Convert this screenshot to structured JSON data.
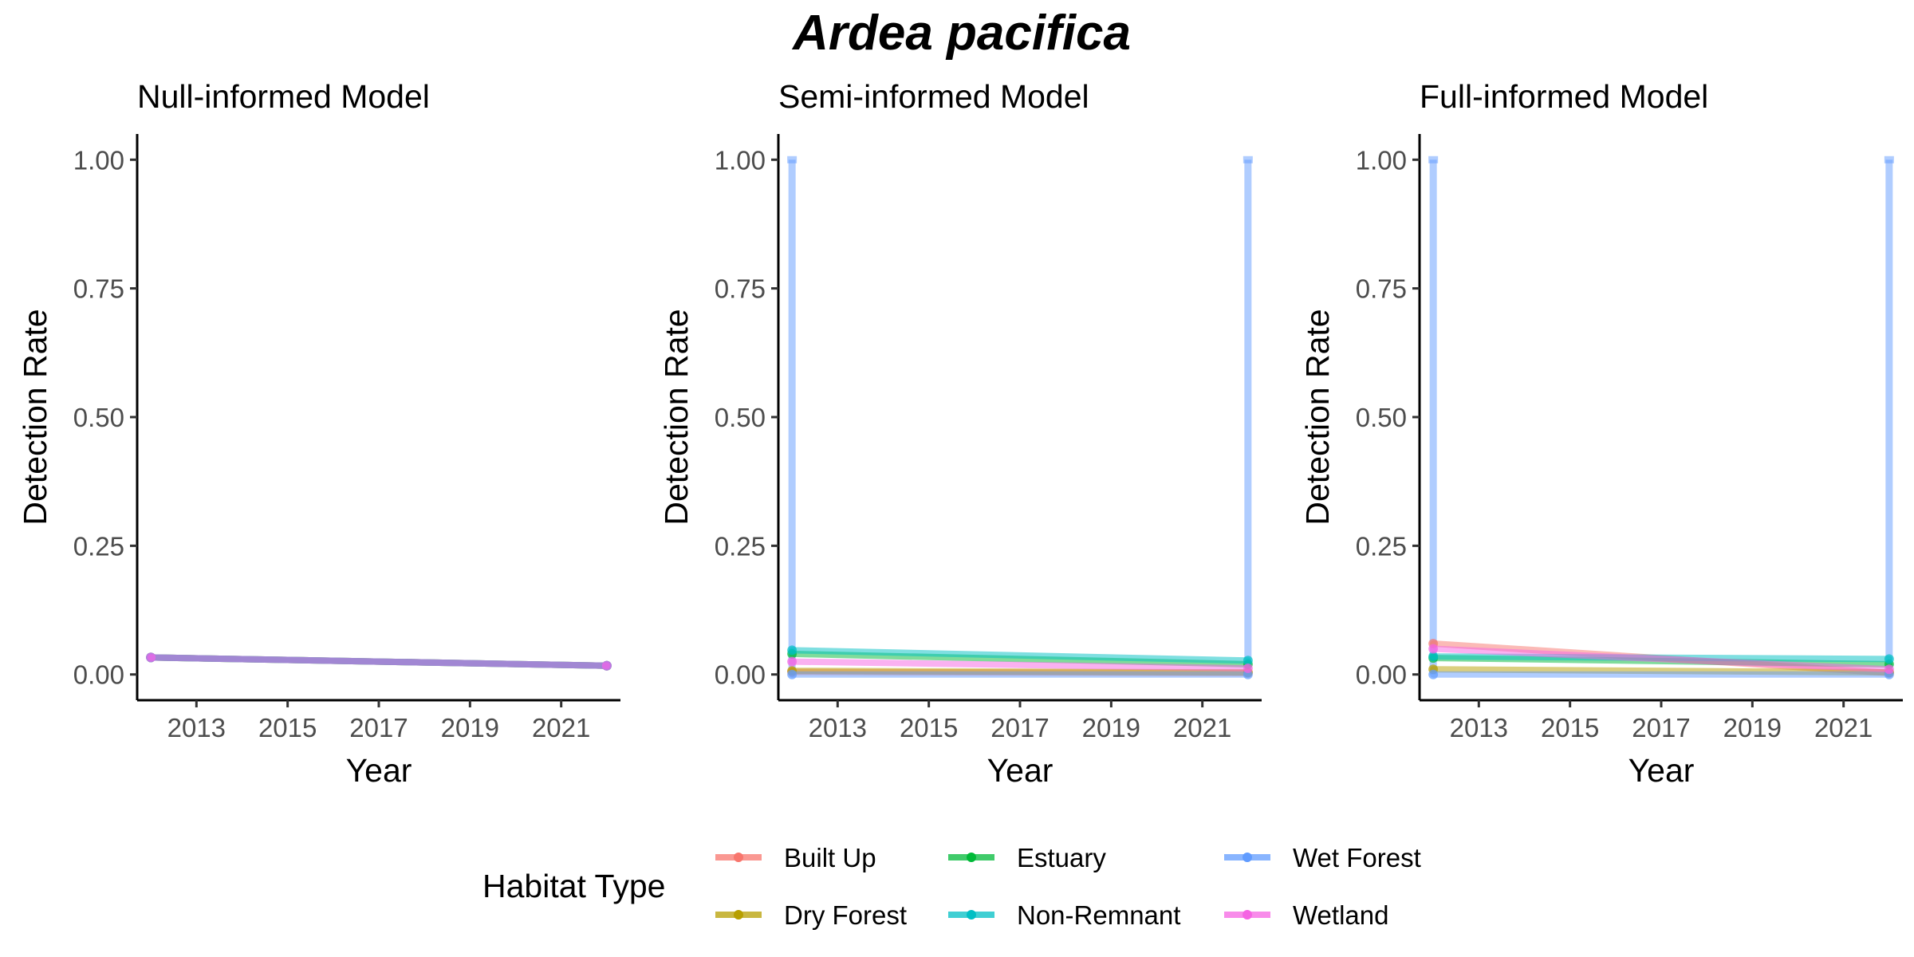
{
  "title": "Ardea pacifica",
  "legend": {
    "title": "Habitat Type",
    "position": "bottom",
    "entries": [
      {
        "name": "Built Up",
        "color": "#F8766D"
      },
      {
        "name": "Dry Forest",
        "color": "#B79F00"
      },
      {
        "name": "Estuary",
        "color": "#00BA38"
      },
      {
        "name": "Non-Remnant",
        "color": "#00BFC4"
      },
      {
        "name": "Wet Forest",
        "color": "#619CFF"
      },
      {
        "name": "Wetland",
        "color": "#F564E3"
      }
    ]
  },
  "chart_data": [
    {
      "type": "line",
      "title": "Null-informed Model",
      "xlabel": "Year",
      "ylabel": "Detection Rate",
      "xlim": [
        2011.7,
        2022.3
      ],
      "ylim": [
        -0.05,
        1.05
      ],
      "xticks": [
        "2013",
        "2015",
        "2017",
        "2019",
        "2021"
      ],
      "yticks": [
        "0.00",
        "0.25",
        "0.50",
        "0.75",
        "1.00"
      ],
      "grid": false,
      "series": [
        {
          "name": "Built Up",
          "x": [
            2012,
            2022
          ],
          "y": [
            0.033,
            0.017
          ]
        },
        {
          "name": "Dry Forest",
          "x": [
            2012,
            2022
          ],
          "y": [
            0.033,
            0.017
          ]
        },
        {
          "name": "Estuary",
          "x": [
            2012,
            2022
          ],
          "y": [
            0.033,
            0.017
          ]
        },
        {
          "name": "Non-Remnant",
          "x": [
            2012,
            2022
          ],
          "y": [
            0.033,
            0.017
          ]
        },
        {
          "name": "Wet Forest",
          "x": [
            2012,
            2022
          ],
          "y": [
            0.033,
            0.017
          ]
        },
        {
          "name": "Wetland",
          "x": [
            2012,
            2022
          ],
          "y": [
            0.033,
            0.017
          ]
        }
      ]
    },
    {
      "type": "line",
      "title": "Semi-informed Model",
      "xlabel": "Year",
      "ylabel": "Detection Rate",
      "xlim": [
        2011.7,
        2022.3
      ],
      "ylim": [
        -0.05,
        1.05
      ],
      "xticks": [
        "2013",
        "2015",
        "2017",
        "2019",
        "2021"
      ],
      "yticks": [
        "0.00",
        "0.25",
        "0.50",
        "0.75",
        "1.00"
      ],
      "grid": false,
      "series": [
        {
          "name": "Built Up",
          "x": [
            2012,
            2022
          ],
          "y": [
            0.005,
            0.003
          ]
        },
        {
          "name": "Dry Forest",
          "x": [
            2012,
            2022
          ],
          "y": [
            0.007,
            0.004
          ]
        },
        {
          "name": "Estuary",
          "x": [
            2012,
            2022
          ],
          "y": [
            0.04,
            0.02
          ]
        },
        {
          "name": "Non-Remnant",
          "x": [
            2012,
            2022
          ],
          "y": [
            0.047,
            0.027
          ]
        },
        {
          "name": "Wet Forest",
          "x": [
            2012,
            2022
          ],
          "y": [
            0.0,
            0.0
          ],
          "range_bars": [
            [
              0.0,
              1.0
            ],
            [
              0.0,
              1.0
            ]
          ]
        },
        {
          "name": "Wetland",
          "x": [
            2012,
            2022
          ],
          "y": [
            0.025,
            0.012
          ]
        }
      ]
    },
    {
      "type": "line",
      "title": "Full-informed Model",
      "xlabel": "Year",
      "ylabel": "Detection Rate",
      "xlim": [
        2011.7,
        2022.3
      ],
      "ylim": [
        -0.05,
        1.05
      ],
      "xticks": [
        "2013",
        "2015",
        "2017",
        "2019",
        "2021"
      ],
      "yticks": [
        "0.00",
        "0.25",
        "0.50",
        "0.75",
        "1.00"
      ],
      "grid": false,
      "series": [
        {
          "name": "Built Up",
          "x": [
            2012,
            2022
          ],
          "y": [
            0.06,
            0.003
          ]
        },
        {
          "name": "Dry Forest",
          "x": [
            2012,
            2022
          ],
          "y": [
            0.01,
            0.004
          ]
        },
        {
          "name": "Estuary",
          "x": [
            2012,
            2022
          ],
          "y": [
            0.032,
            0.02
          ]
        },
        {
          "name": "Non-Remnant",
          "x": [
            2012,
            2022
          ],
          "y": [
            0.035,
            0.03
          ]
        },
        {
          "name": "Wet Forest",
          "x": [
            2012,
            2022
          ],
          "y": [
            0.0,
            0.0
          ],
          "range_bars": [
            [
              0.0,
              1.0
            ],
            [
              0.0,
              1.0
            ]
          ]
        },
        {
          "name": "Wetland",
          "x": [
            2012,
            2022
          ],
          "y": [
            0.05,
            0.01
          ]
        }
      ]
    }
  ]
}
